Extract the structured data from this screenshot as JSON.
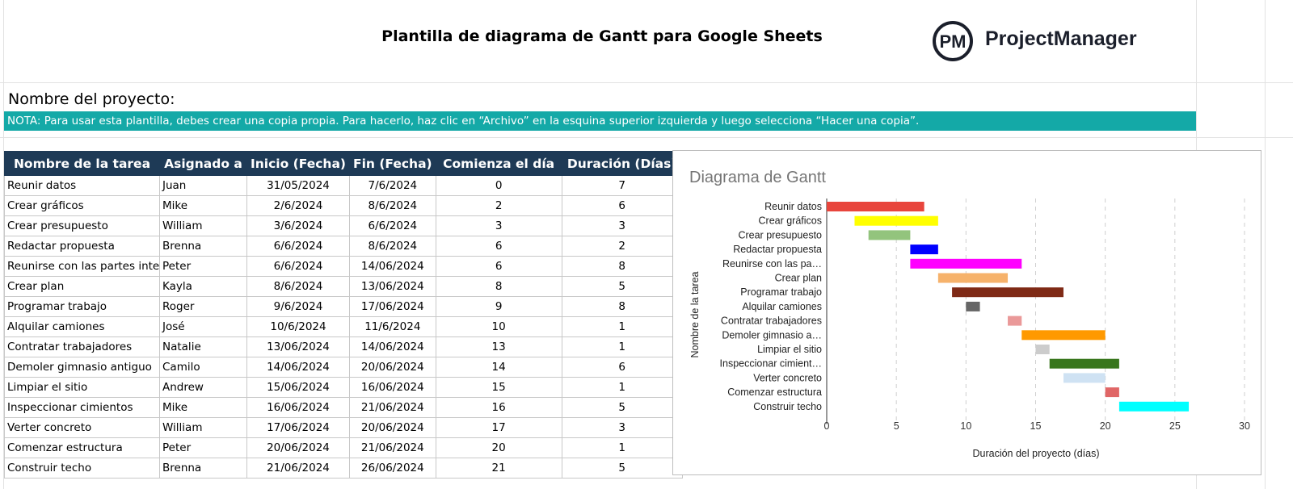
{
  "header": {
    "title": "Plantilla de diagrama de Gantt para Google Sheets",
    "logo_mark": "PM",
    "logo_text": "ProjectManager"
  },
  "project_label": "Nombre del proyecto:",
  "note": "NOTA: Para usar esta plantilla, debes crear una copia propia. Para hacerlo, haz clic en “Archivo” en la esquina superior izquierda y luego selecciona “Hacer una copia”.",
  "table": {
    "columns": [
      "Nombre de la tarea",
      "Asignado a",
      "Inicio (Fecha)",
      "Fin (Fecha)",
      "Comienza el día",
      "Duración (Días)"
    ],
    "rows": [
      [
        "Reunir datos",
        "Juan",
        "31/05/2024",
        "7/6/2024",
        0,
        7
      ],
      [
        "Crear gráficos",
        "Mike",
        "2/6/2024",
        "8/6/2024",
        2,
        6
      ],
      [
        "Crear presupuesto",
        "William",
        "3/6/2024",
        "6/6/2024",
        3,
        3
      ],
      [
        "Redactar propuesta",
        "Brenna",
        "6/6/2024",
        "8/6/2024",
        6,
        2
      ],
      [
        "Reunirse con las partes intere",
        "Peter",
        "6/6/2024",
        "14/06/2024",
        6,
        8
      ],
      [
        "Crear plan",
        "Kayla",
        "8/6/2024",
        "13/06/2024",
        8,
        5
      ],
      [
        "Programar trabajo",
        "Roger",
        "9/6/2024",
        "17/06/2024",
        9,
        8
      ],
      [
        "Alquilar camiones",
        "José",
        "10/6/2024",
        "11/6/2024",
        10,
        1
      ],
      [
        "Contratar trabajadores",
        "Natalie",
        "13/06/2024",
        "14/06/2024",
        13,
        1
      ],
      [
        "Demoler gimnasio antiguo",
        "Camilo",
        "14/06/2024",
        "20/06/2024",
        14,
        6
      ],
      [
        "Limpiar el sitio",
        "Andrew",
        "15/06/2024",
        "16/06/2024",
        15,
        1
      ],
      [
        "Inspeccionar cimientos",
        "Mike",
        "16/06/2024",
        "21/06/2024",
        16,
        5
      ],
      [
        "Verter concreto",
        "William",
        "17/06/2024",
        "20/06/2024",
        17,
        3
      ],
      [
        "Comenzar estructura",
        "Peter",
        "20/06/2024",
        "21/06/2024",
        20,
        1
      ],
      [
        "Construir techo",
        "Brenna",
        "21/06/2024",
        "26/06/2024",
        21,
        5
      ]
    ]
  },
  "chart_data": {
    "type": "gantt",
    "title": "Diagrama de Gantt",
    "x_label": "Duración del proyecto (días)",
    "y_label": "Nombre de la tarea",
    "categories": [
      "Reunir datos",
      "Crear gráficos",
      "Crear presupuesto",
      "Redactar propuesta",
      "Reunirse con las pa…",
      "Crear plan",
      "Programar trabajo",
      "Alquilar camiones",
      "Contratar trabajadores",
      "Demoler gimnasio a…",
      "Limpiar el sitio",
      "Inspeccionar cimient…",
      "Verter concreto",
      "Comenzar estructura",
      "Construir techo"
    ],
    "starts": [
      0,
      2,
      3,
      6,
      6,
      8,
      9,
      10,
      13,
      14,
      15,
      16,
      17,
      20,
      21
    ],
    "values": [
      7,
      6,
      3,
      2,
      8,
      5,
      8,
      1,
      1,
      6,
      1,
      5,
      3,
      1,
      5
    ],
    "colors": [
      "#e8453c",
      "#ffff00",
      "#93c47d",
      "#0000ff",
      "#ff00ff",
      "#f6b26b",
      "#7f2a16",
      "#666666",
      "#ea9999",
      "#ff9900",
      "#cccccc",
      "#38761d",
      "#cfe2f3",
      "#e06666",
      "#00ffff"
    ],
    "xlim": [
      0,
      30
    ],
    "xticks": [
      0,
      5,
      10,
      15,
      20,
      25,
      30
    ],
    "grid": true
  }
}
